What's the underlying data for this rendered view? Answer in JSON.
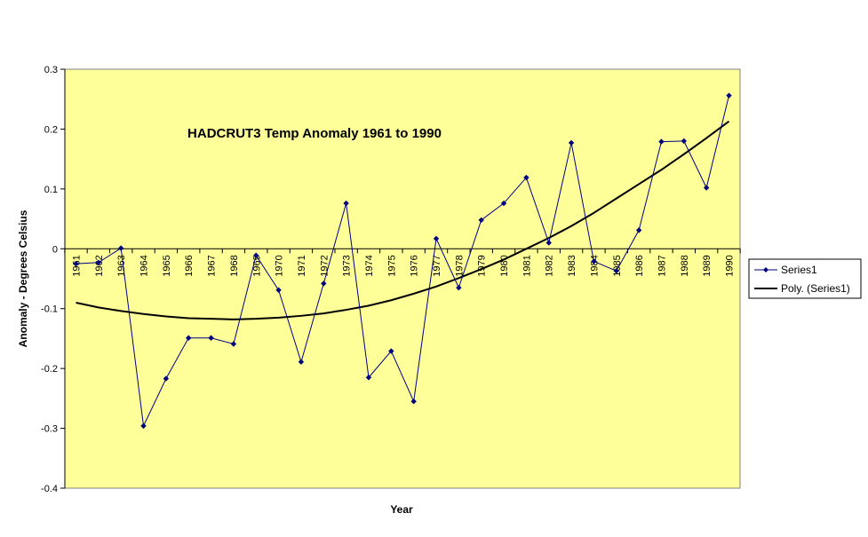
{
  "chart_data": {
    "type": "line",
    "title": "HADCRUT3 Temp Anomaly 1961 to 1990",
    "xlabel": "Year",
    "ylabel": "Anomaly - Degrees Celsius",
    "ylim": [
      -0.4,
      0.3
    ],
    "yticks": [
      0.3,
      0.2,
      0.1,
      0,
      -0.1,
      -0.2,
      -0.3,
      -0.4
    ],
    "ytick_labels": [
      "0.3",
      "0.2",
      "0.1",
      "0",
      "-0.1",
      "-0.2",
      "-0.3",
      "-0.4"
    ],
    "categories": [
      "1961",
      "1962",
      "1963",
      "1964",
      "1965",
      "1966",
      "1967",
      "1968",
      "1969",
      "1970",
      "1971",
      "1972",
      "1973",
      "1974",
      "1975",
      "1976",
      "1977",
      "1978",
      "1979",
      "1980",
      "1981",
      "1982",
      "1983",
      "1984",
      "1985",
      "1986",
      "1987",
      "1988",
      "1989",
      "1990"
    ],
    "series": [
      {
        "name": "Series1",
        "color": "#000080",
        "marker": "diamond",
        "values": [
          -0.025,
          -0.023,
          0.001,
          -0.296,
          -0.217,
          -0.149,
          -0.149,
          -0.159,
          -0.011,
          -0.069,
          -0.189,
          -0.058,
          0.076,
          -0.215,
          -0.171,
          -0.255,
          0.017,
          -0.065,
          0.048,
          0.076,
          0.119,
          0.01,
          0.177,
          -0.021,
          -0.037,
          0.031,
          0.179,
          0.18,
          0.102,
          0.256
        ]
      },
      {
        "name": "Poly. (Series1)",
        "color": "#000000",
        "trendline": "polynomial",
        "values": [
          -0.09,
          -0.098,
          -0.104,
          -0.109,
          -0.113,
          -0.116,
          -0.117,
          -0.118,
          -0.117,
          -0.115,
          -0.112,
          -0.108,
          -0.102,
          -0.095,
          -0.086,
          -0.075,
          -0.063,
          -0.049,
          -0.034,
          -0.018,
          0.0,
          0.018,
          0.038,
          0.06,
          0.084,
          0.108,
          0.132,
          0.158,
          0.185,
          0.213
        ]
      }
    ],
    "grid": false,
    "legend_position": "right",
    "plot_background": "#ffff99"
  }
}
